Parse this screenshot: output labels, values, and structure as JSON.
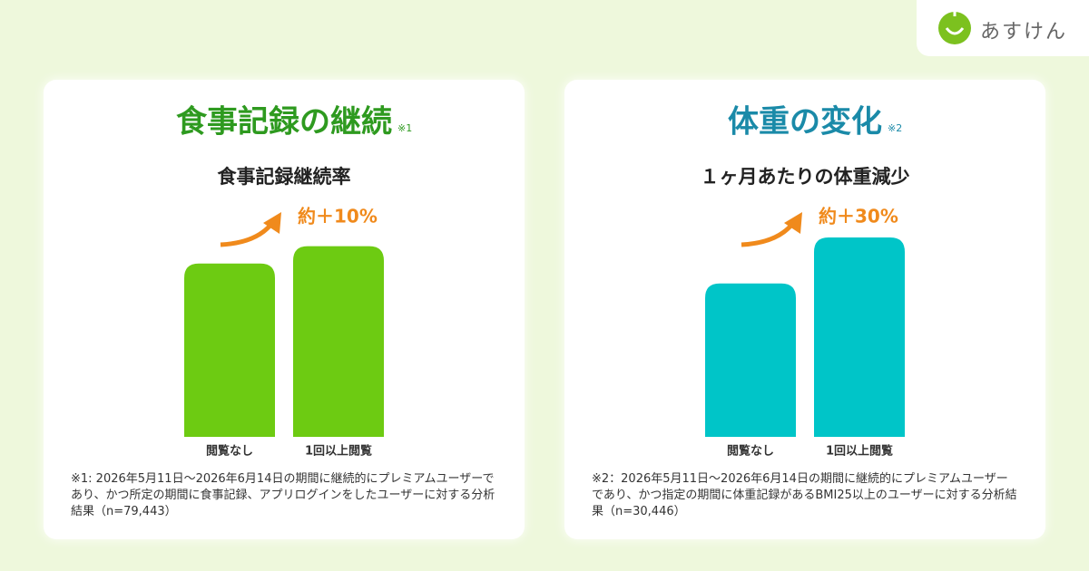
{
  "header": {
    "logo": "あすけん"
  },
  "chart_data": [
    {
      "type": "bar",
      "title": "食事記録の継続",
      "title_note": "※1",
      "subtitle": "食事記録継続率",
      "annotation": "約＋10%",
      "categories": [
        "閲覧なし",
        "1回以上閲覧"
      ],
      "values": [
        100,
        110
      ],
      "color": "#6dcb12",
      "title_color": "#2e9a1f",
      "ylim": [
        0,
        115
      ],
      "footnote": "※1: 2026年5月11日～2026年6月14日の期間に継続的にプレミアムユーザーであり、かつ所定の期間に食事記録、アプリログインをしたユーザーに対する分析結果（n=79,443）"
    },
    {
      "type": "bar",
      "title": "体重の変化",
      "title_note": "※2",
      "subtitle": "１ヶ月あたりの体重減少",
      "annotation": "約＋30%",
      "categories": [
        "閲覧なし",
        "1回以上閲覧"
      ],
      "values": [
        100,
        130
      ],
      "color": "#00c5c8",
      "title_color": "#1a8aa8",
      "ylim": [
        0,
        130
      ],
      "footnote": "※2：2026年5月11日～2026年6月14日の期間に継続的にプレミアムユーザーであり、かつ指定の期間に体重記録があるBMI25以上のユーザーに対する分析結果（n=30,446）"
    }
  ]
}
